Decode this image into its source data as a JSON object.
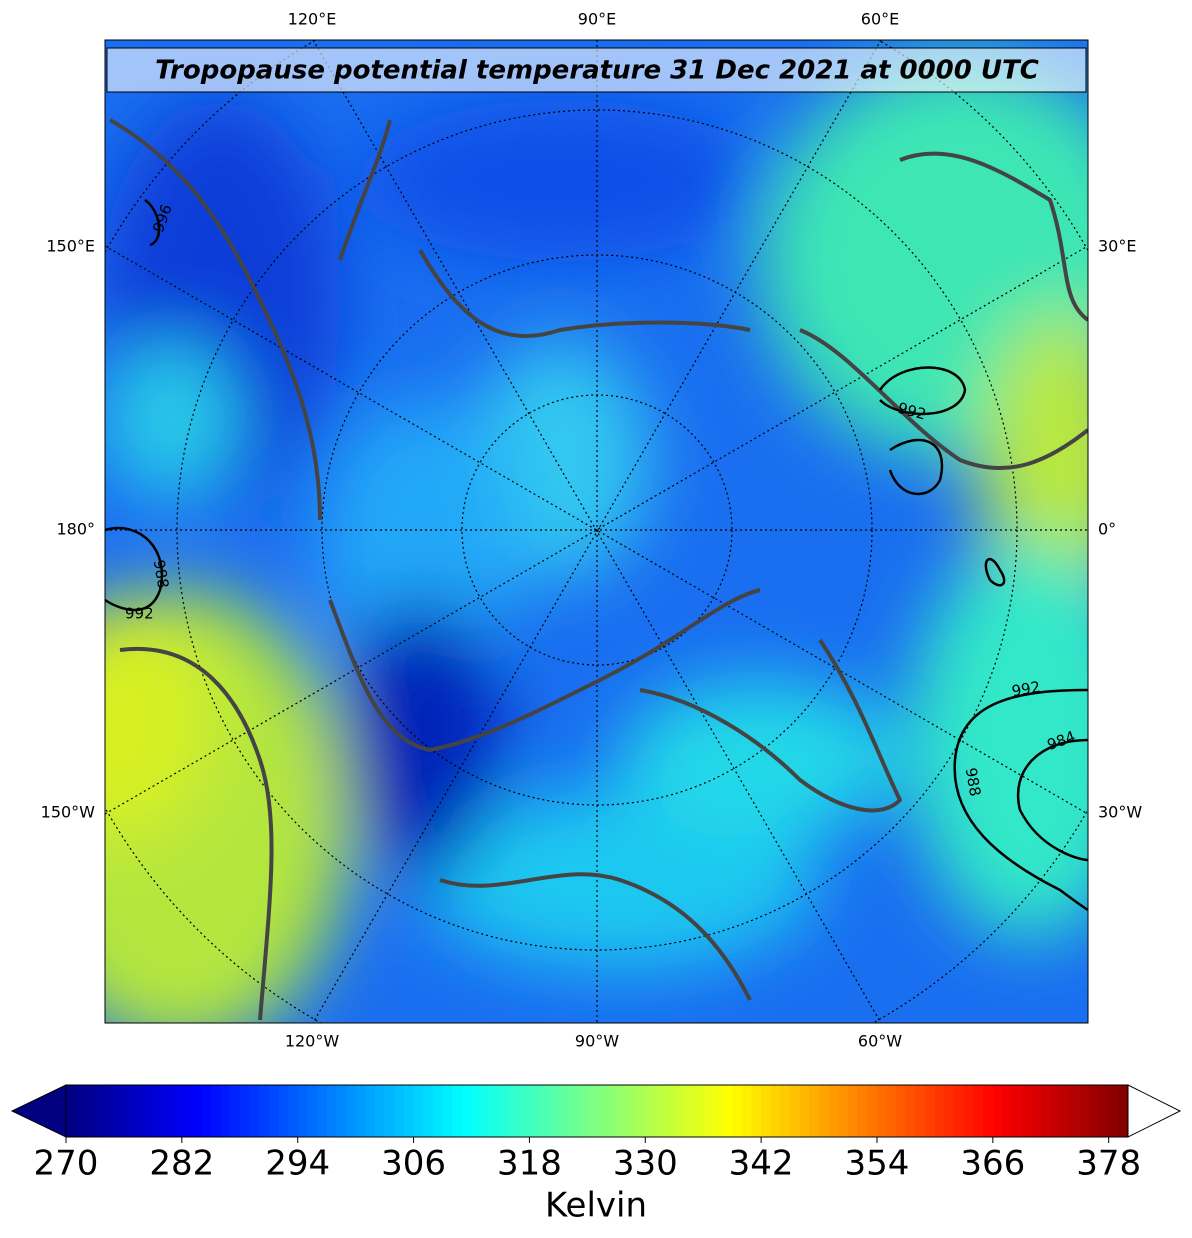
{
  "title": "Tropopause potential temperature 31 Dec 2021 at 0000 UTC",
  "map": {
    "top_labels": [
      "120°E",
      "90°E",
      "60°E"
    ],
    "bottom_labels": [
      "120°W",
      "90°W",
      "60°W"
    ],
    "left_labels": [
      "150°E",
      "180°",
      "150°W"
    ],
    "right_labels": [
      "30°E",
      "0°",
      "30°W"
    ],
    "pressure_labels": [
      "996",
      "988",
      "992",
      "992",
      "992",
      "984",
      "988"
    ]
  },
  "colorbar": {
    "label": "Kelvin",
    "lim": [
      270,
      380
    ],
    "ticks": [
      270,
      282,
      294,
      306,
      318,
      330,
      342,
      354,
      366,
      378
    ]
  }
}
